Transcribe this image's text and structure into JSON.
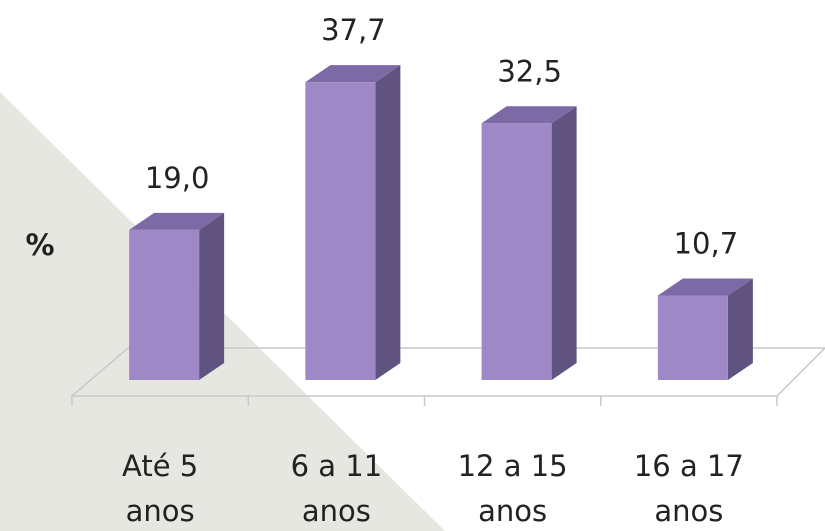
{
  "chart_data": {
    "type": "bar3d",
    "ylabel": "%",
    "categories": [
      "Até 5 anos",
      "6 a 11 anos",
      "12 a 15 anos",
      "16 a 17 anos"
    ],
    "values": [
      19.0,
      37.7,
      32.5,
      10.7
    ],
    "value_labels": [
      "19,0",
      "37,7",
      "32,5",
      "10,7"
    ],
    "color": "#9e88c5",
    "ylim": [
      0,
      40
    ]
  }
}
